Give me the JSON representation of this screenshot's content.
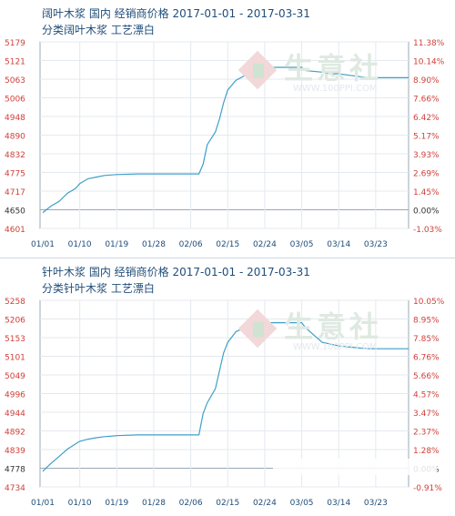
{
  "charts": [
    {
      "title": "阔叶木浆 国内 经销商价格 2017-01-01 - 2017-03-31",
      "subtitle": "分类阔叶木浆 工艺漂白",
      "chart_data": {
        "type": "line",
        "x_ticks": [
          "01/01",
          "01/10",
          "01/19",
          "01/28",
          "02/06",
          "02/15",
          "02/24",
          "03/05",
          "03/14",
          "03/23"
        ],
        "left_ticks": [
          5179,
          5121,
          5063,
          5006,
          4948,
          4890,
          4832,
          4775,
          4717,
          4650,
          4601
        ],
        "right_ticks": [
          "11.38%",
          "10.14%",
          "8.90%",
          "7.66%",
          "6.42%",
          "5.17%",
          "3.93%",
          "2.69%",
          "1.45%",
          "0.00%",
          "-1.03%"
        ],
        "ylim": [
          4601,
          5179
        ],
        "baseline": 4650,
        "series": [
          {
            "x": [
              "01/01",
              "01/03",
              "01/05",
              "01/07",
              "01/09",
              "01/10",
              "01/12",
              "01/14",
              "01/16",
              "01/19",
              "01/24",
              "01/28",
              "02/01",
              "02/05",
              "02/08",
              "02/09",
              "02/10",
              "02/12",
              "02/13",
              "02/14",
              "02/15",
              "02/17",
              "02/20",
              "02/24",
              "03/05",
              "03/06",
              "03/10",
              "03/12",
              "03/14",
              "03/21",
              "03/31"
            ],
            "y": [
              4650,
              4670,
              4685,
              4710,
              4725,
              4740,
              4755,
              4760,
              4765,
              4768,
              4770,
              4770,
              4770,
              4770,
              4770,
              4800,
              4860,
              4900,
              4940,
              4990,
              5030,
              5060,
              5080,
              5100,
              5100,
              5090,
              5085,
              5080,
              5080,
              5068,
              5068
            ]
          }
        ]
      }
    },
    {
      "title": "针叶木浆 国内 经销商价格 2017-01-01 - 2017-03-31",
      "subtitle": "分类针叶木浆 工艺漂白",
      "chart_data": {
        "type": "line",
        "x_ticks": [
          "01/01",
          "01/10",
          "01/19",
          "01/28",
          "02/06",
          "02/15",
          "02/24",
          "03/05",
          "03/14",
          "03/23"
        ],
        "left_ticks": [
          5258,
          5206,
          5153,
          5101,
          5049,
          4996,
          4944,
          4892,
          4839,
          4778,
          4734
        ],
        "right_ticks": [
          "10.05%",
          "8.95%",
          "7.85%",
          "6.76%",
          "5.66%",
          "4.57%",
          "3.47%",
          "2.37%",
          "1.28%",
          "0.00%",
          "-0.91%"
        ],
        "ylim": [
          4734,
          5258
        ],
        "baseline": 4778,
        "series": [
          {
            "x": [
              "01/01",
              "01/03",
              "01/05",
              "01/07",
              "01/09",
              "01/10",
              "01/12",
              "01/14",
              "01/16",
              "01/19",
              "01/24",
              "01/28",
              "02/01",
              "02/05",
              "02/08",
              "02/09",
              "02/10",
              "02/12",
              "02/13",
              "02/14",
              "02/15",
              "02/17",
              "02/20",
              "02/24",
              "03/05",
              "03/06",
              "03/10",
              "03/12",
              "03/14",
              "03/21",
              "03/31"
            ],
            "y": [
              4778,
              4800,
              4820,
              4840,
              4855,
              4862,
              4868,
              4872,
              4875,
              4878,
              4880,
              4880,
              4880,
              4880,
              4880,
              4940,
              4970,
              5010,
              5060,
              5110,
              5140,
              5170,
              5185,
              5195,
              5195,
              5180,
              5140,
              5135,
              5130,
              5122,
              5122
            ]
          }
        ]
      }
    }
  ],
  "watermark": {
    "text": "生意社",
    "url": "WWW.100PPI.COM"
  }
}
